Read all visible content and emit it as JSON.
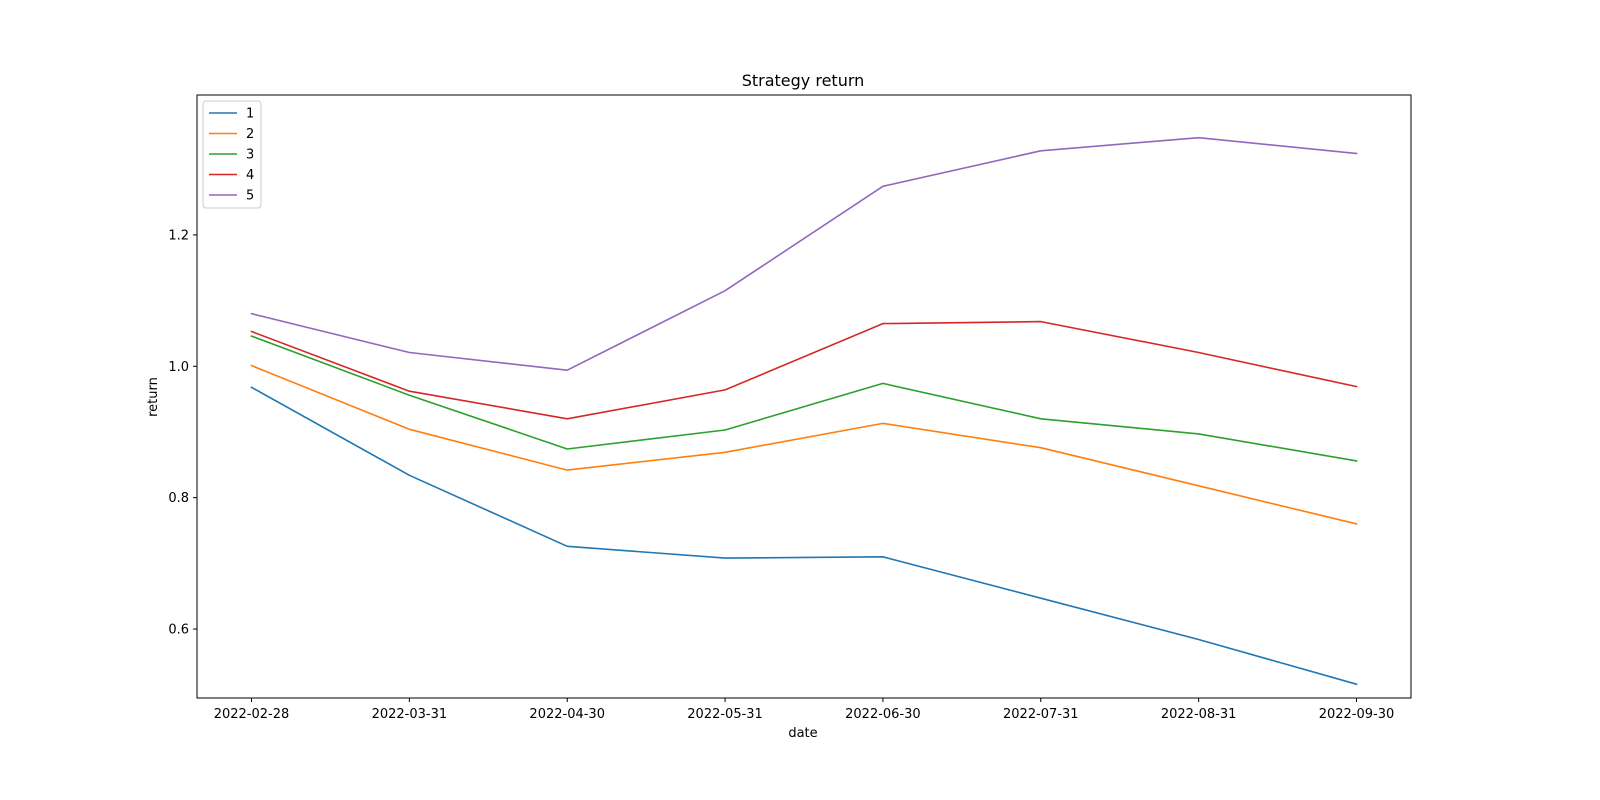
{
  "chart_data": {
    "type": "line",
    "title": "Strategy return",
    "xlabel": "date",
    "ylabel": "return",
    "categories": [
      "2022-02-28",
      "2022-03-31",
      "2022-04-30",
      "2022-05-31",
      "2022-06-30",
      "2022-07-31",
      "2022-08-31",
      "2022-09-30"
    ],
    "yticks": [
      0.6,
      0.8,
      1.0,
      1.2
    ],
    "ytick_labels": [
      "0.6",
      "0.8",
      "1.0",
      "1.2"
    ],
    "ylim": [
      0.495,
      1.413
    ],
    "grid": false,
    "legend_position": "upper-left",
    "series": [
      {
        "name": "1",
        "color": "#1f77b4",
        "values": [
          0.968,
          0.834,
          0.726,
          0.708,
          0.71,
          0.647,
          0.584,
          0.516
        ]
      },
      {
        "name": "2",
        "color": "#ff7f0e",
        "values": [
          1.001,
          0.904,
          0.842,
          0.869,
          0.913,
          0.876,
          0.818,
          0.76
        ]
      },
      {
        "name": "3",
        "color": "#2ca02c",
        "values": [
          1.046,
          0.956,
          0.874,
          0.903,
          0.974,
          0.92,
          0.897,
          0.856
        ]
      },
      {
        "name": "4",
        "color": "#d62728",
        "values": [
          1.053,
          0.962,
          0.92,
          0.964,
          1.065,
          1.068,
          1.021,
          0.969
        ]
      },
      {
        "name": "5",
        "color": "#9467bd",
        "values": [
          1.08,
          1.021,
          0.994,
          1.115,
          1.274,
          1.328,
          1.348,
          1.324
        ]
      }
    ]
  }
}
